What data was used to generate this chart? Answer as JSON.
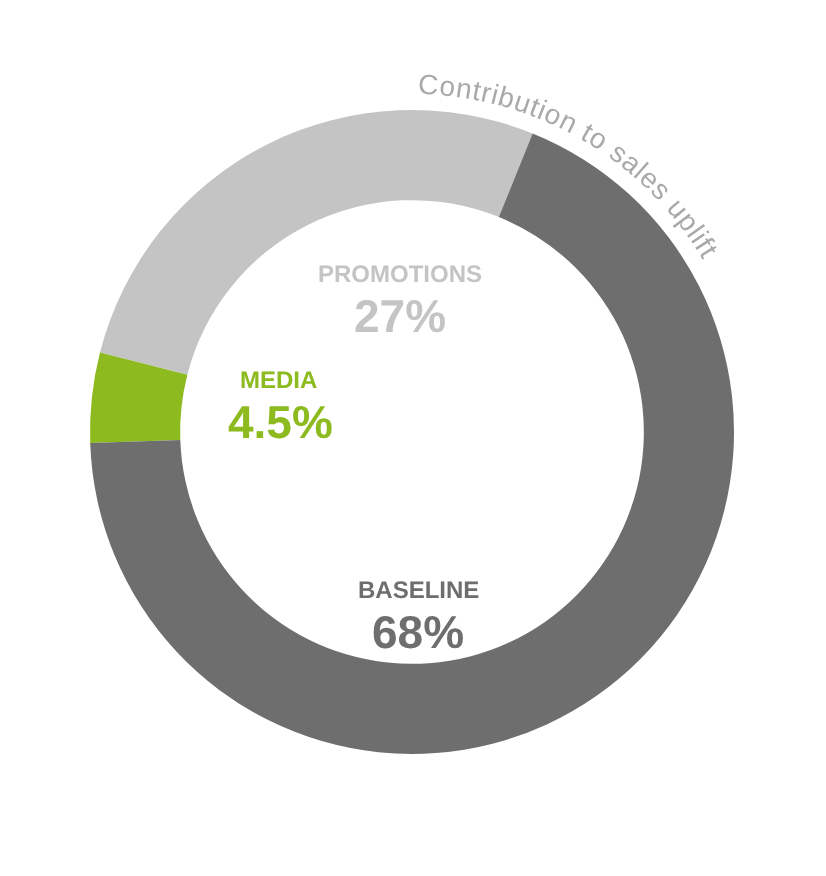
{
  "chart_data": {
    "type": "donut",
    "title": "Contribution to sales uplift",
    "categories": [
      "PROMOTIONS",
      "MEDIA",
      "BASELINE"
    ],
    "values": [
      27,
      4.5,
      68
    ],
    "colors": [
      "#c4c4c4",
      "#8dbb1f",
      "#6e6e6e"
    ],
    "value_labels": [
      "27%",
      "4.5%",
      "68%"
    ]
  }
}
